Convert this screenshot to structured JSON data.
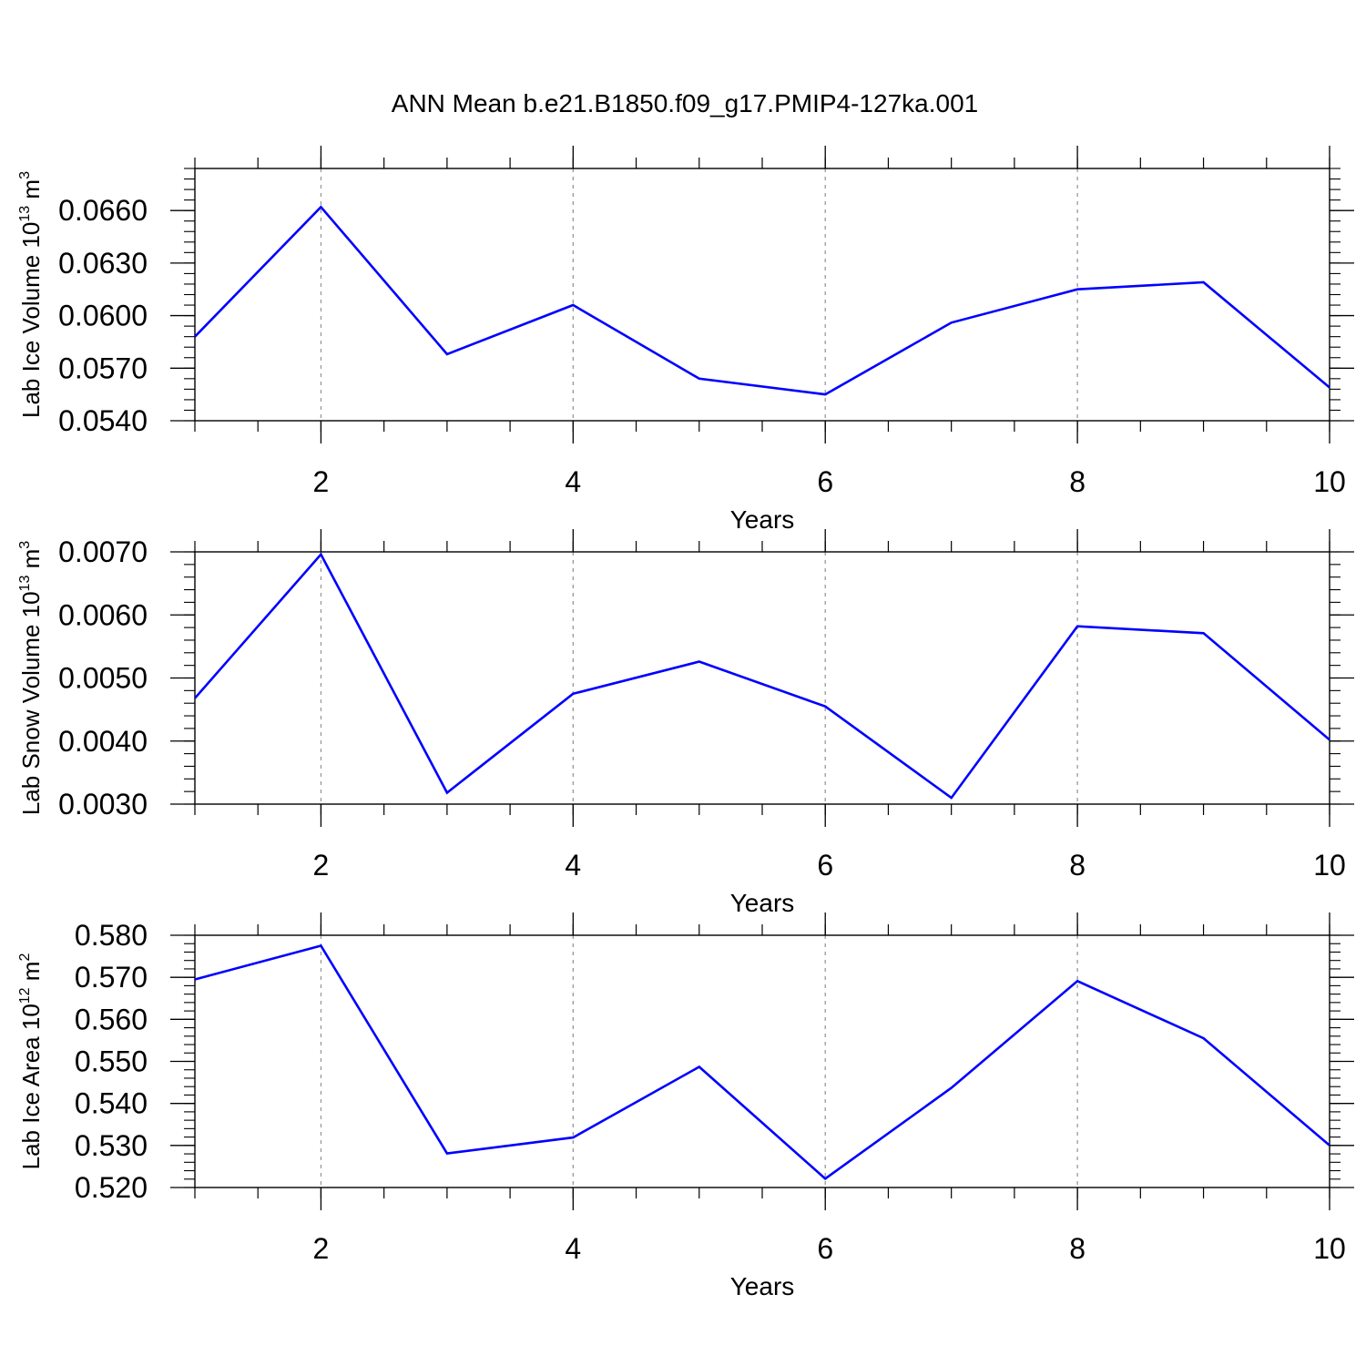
{
  "figure": {
    "title": "ANN Mean b.e21.B1850.f09_g17.PMIP4-127ka.001"
  },
  "chart_data": [
    {
      "type": "line",
      "xlabel": "Years",
      "ylabel": "Lab Ice Volume 10",
      "ylabel_sup": "13",
      "ylabel_unit": " m",
      "ylabel_unit_sup": "3",
      "xlim": [
        1,
        10
      ],
      "ylim": [
        0.054,
        0.0684
      ],
      "xticks": [
        2,
        4,
        6,
        8,
        10
      ],
      "xtick_labels": [
        "2",
        "4",
        "6",
        "8",
        "10"
      ],
      "yticks": [
        0.054,
        0.057,
        0.06,
        0.063,
        0.066
      ],
      "ytick_labels": [
        "0.0540",
        "0.0570",
        "0.0600",
        "0.0630",
        "0.0660"
      ],
      "grid": "vertical dashed at major x ticks",
      "series": [
        {
          "color": "#0000ff",
          "x": [
            1,
            2,
            3,
            4,
            5,
            6,
            7,
            8,
            9,
            10
          ],
          "values": [
            0.0588,
            0.0662,
            0.0578,
            0.0606,
            0.0564,
            0.0555,
            0.0596,
            0.0615,
            0.0619,
            0.0559
          ]
        }
      ]
    },
    {
      "type": "line",
      "xlabel": "Years",
      "ylabel": "Lab Snow Volume 10",
      "ylabel_sup": "13",
      "ylabel_unit": " m",
      "ylabel_unit_sup": "3",
      "xlim": [
        1,
        10
      ],
      "ylim": [
        0.003,
        0.007
      ],
      "xticks": [
        2,
        4,
        6,
        8,
        10
      ],
      "xtick_labels": [
        "2",
        "4",
        "6",
        "8",
        "10"
      ],
      "yticks": [
        0.003,
        0.004,
        0.005,
        0.006,
        0.007
      ],
      "ytick_labels": [
        "0.0030",
        "0.0040",
        "0.0050",
        "0.0060",
        "0.0070"
      ],
      "grid": "vertical dashed at major x ticks",
      "series": [
        {
          "color": "#0000ff",
          "x": [
            1,
            2,
            3,
            4,
            5,
            6,
            7,
            8,
            9,
            10
          ],
          "values": [
            0.00468,
            0.00696,
            0.00318,
            0.00475,
            0.00526,
            0.00455,
            0.0031,
            0.00582,
            0.00571,
            0.00402
          ]
        }
      ]
    },
    {
      "type": "line",
      "xlabel": "Years",
      "ylabel": "Lab Ice Area 10",
      "ylabel_sup": "12",
      "ylabel_unit": " m",
      "ylabel_unit_sup": "2",
      "xlim": [
        1,
        10
      ],
      "ylim": [
        0.52,
        0.58
      ],
      "xticks": [
        2,
        4,
        6,
        8,
        10
      ],
      "xtick_labels": [
        "2",
        "4",
        "6",
        "8",
        "10"
      ],
      "yticks": [
        0.52,
        0.53,
        0.54,
        0.55,
        0.56,
        0.57,
        0.58
      ],
      "ytick_labels": [
        "0.520",
        "0.530",
        "0.540",
        "0.550",
        "0.560",
        "0.570",
        "0.580"
      ],
      "grid": "vertical dashed at major x ticks",
      "series": [
        {
          "color": "#0000ff",
          "x": [
            1,
            2,
            3,
            4,
            5,
            6,
            7,
            8,
            9,
            10
          ],
          "values": [
            0.5695,
            0.5775,
            0.5281,
            0.5319,
            0.5487,
            0.5221,
            0.5437,
            0.5691,
            0.5555,
            0.53
          ]
        }
      ]
    }
  ]
}
